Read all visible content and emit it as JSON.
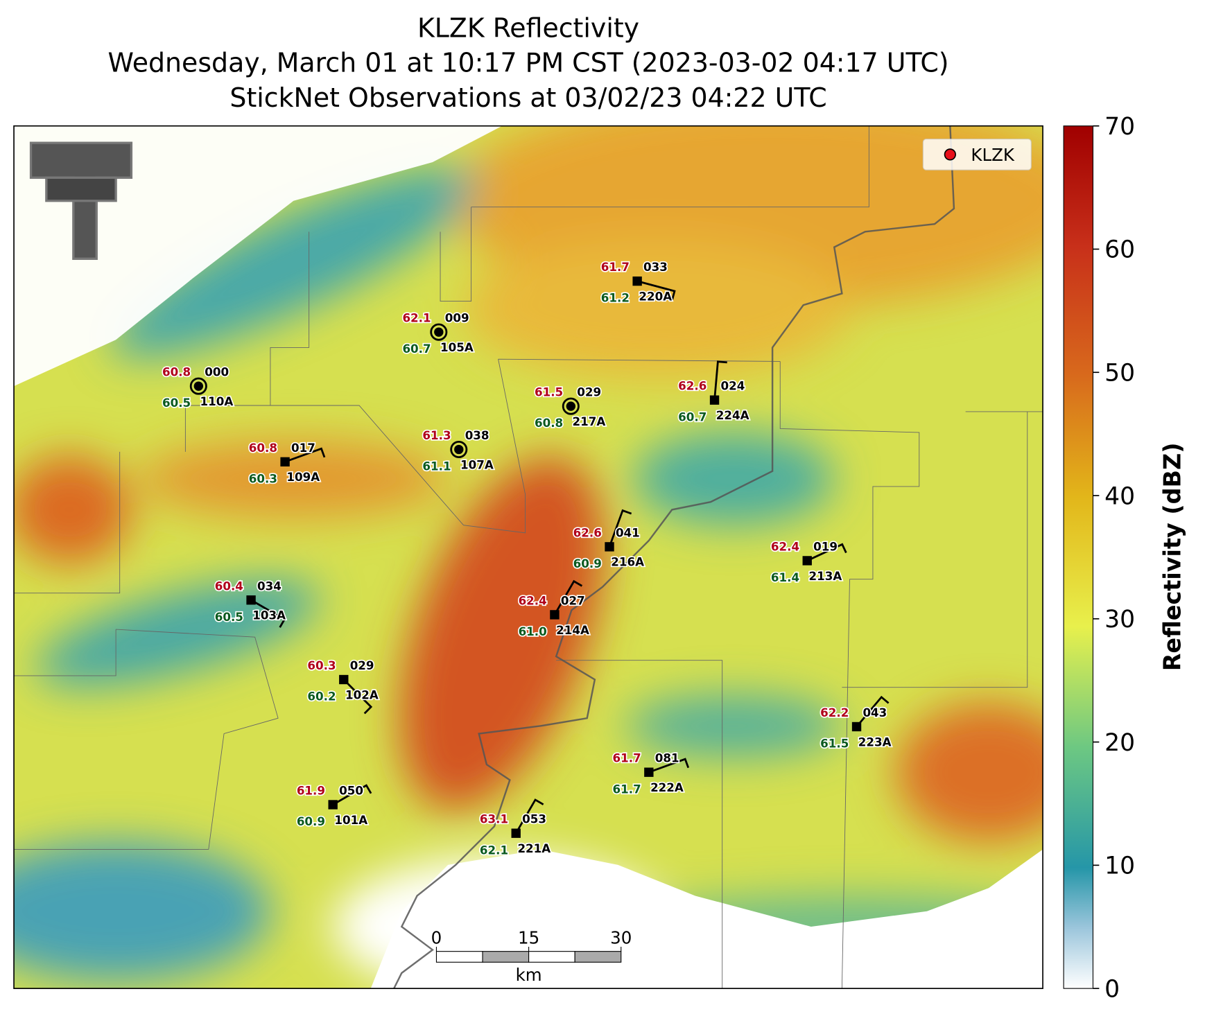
{
  "header": {
    "title": [
      "KLZK Reflectivity",
      "Wednesday, March 01 at 10:17 PM CST (2023-03-02 04:17 UTC)",
      "StickNet Observations at 03/02/23 04:22 UTC"
    ]
  },
  "legend": {
    "label": "KLZK"
  },
  "colorbar": {
    "label": "Reflectivity (dBZ)",
    "range": [
      0,
      70
    ],
    "ticks": [
      0,
      10,
      20,
      30,
      40,
      50,
      60,
      70
    ]
  },
  "scale_bar": {
    "ticks": [
      0,
      15,
      30
    ],
    "unit": "km"
  },
  "stations": [
    {
      "id": "110A",
      "temperature": "60.8",
      "dewpoint": "60.5",
      "wind": "000"
    },
    {
      "id": "105A",
      "temperature": "62.1",
      "dewpoint": "60.7",
      "wind": "009"
    },
    {
      "id": "220A",
      "temperature": "61.7",
      "dewpoint": "61.2",
      "wind": "033"
    },
    {
      "id": "217A",
      "temperature": "61.5",
      "dewpoint": "60.8",
      "wind": "029"
    },
    {
      "id": "224A",
      "temperature": "62.6",
      "dewpoint": "60.7",
      "wind": "024"
    },
    {
      "id": "109A",
      "temperature": "60.8",
      "dewpoint": "60.3",
      "wind": "017"
    },
    {
      "id": "107A",
      "temperature": "61.3",
      "dewpoint": "61.1",
      "wind": "038"
    },
    {
      "id": "216A",
      "temperature": "62.6",
      "dewpoint": "60.9",
      "wind": "041"
    },
    {
      "id": "213A",
      "temperature": "62.4",
      "dewpoint": "61.4",
      "wind": "019"
    },
    {
      "id": "103A",
      "temperature": "60.4",
      "dewpoint": "60.5",
      "wind": "034"
    },
    {
      "id": "214A",
      "temperature": "62.4",
      "dewpoint": "61.0",
      "wind": "027"
    },
    {
      "id": "102A",
      "temperature": "60.3",
      "dewpoint": "60.2",
      "wind": "029"
    },
    {
      "id": "223A",
      "temperature": "62.2",
      "dewpoint": "61.5",
      "wind": "043"
    },
    {
      "id": "222A",
      "temperature": "61.7",
      "dewpoint": "61.7",
      "wind": "081"
    },
    {
      "id": "101A",
      "temperature": "61.9",
      "dewpoint": "60.9",
      "wind": "050"
    },
    {
      "id": "221A",
      "temperature": "63.1",
      "dewpoint": "62.1",
      "wind": "053"
    }
  ]
}
